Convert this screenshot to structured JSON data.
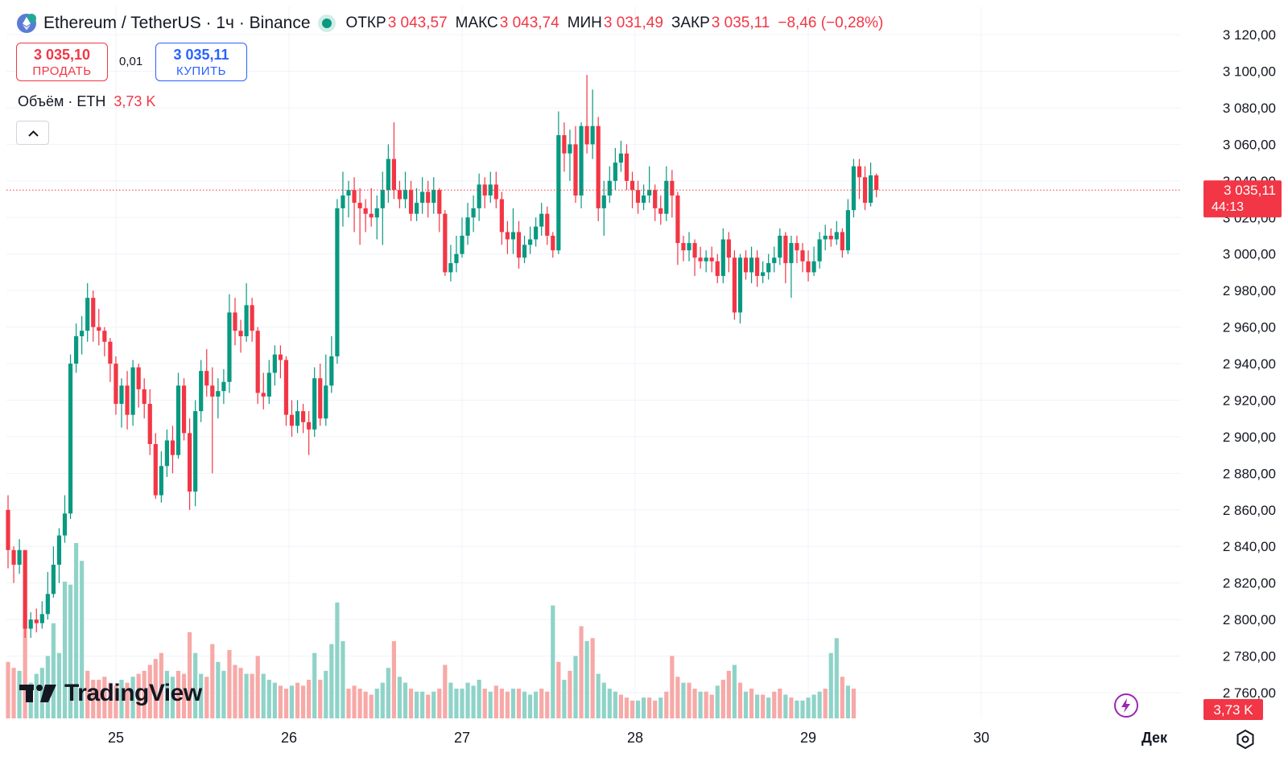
{
  "header": {
    "symbol": "Ethereum / TetherUS · 1ч · Binance",
    "open_label": "ОТКР",
    "open_value": "3 043,57",
    "high_label": "МАКС",
    "high_value": "3 043,74",
    "low_label": "МИН",
    "low_value": "3 031,49",
    "close_label": "ЗАКР",
    "close_value": "3 035,11",
    "change": "−8,46 (−0,28%)"
  },
  "trade": {
    "sell_price": "3 035,10",
    "sell_label": "ПРОДАТЬ",
    "spread": "0,01",
    "buy_price": "3 035,11",
    "buy_label": "КУПИТЬ"
  },
  "volume_legend": {
    "label": "Объём · ETH",
    "value": "3,73 K"
  },
  "logo": {
    "text": "TradingView"
  },
  "colors": {
    "up": "#089981",
    "down": "#f23645",
    "vol_up": "#8fd3c8",
    "vol_down": "#f7a9a7",
    "accent": "#2962ff"
  },
  "icons": {
    "symbol": "ethereum-icon",
    "collapse": "chevron-up-icon",
    "bolt": "lightning-icon",
    "settings": "gear-icon"
  },
  "chart_data": {
    "type": "candlestick",
    "interval": "1h",
    "y_ticks": [
      2760,
      2780,
      2800,
      2820,
      2840,
      2860,
      2880,
      2900,
      2920,
      2940,
      2960,
      2980,
      3000,
      3020,
      3040,
      3060,
      3080,
      3100,
      3120
    ],
    "y_tick_labels": [
      "2 760,00",
      "2 780,00",
      "2 800,00",
      "2 820,00",
      "2 840,00",
      "2 860,00",
      "2 880,00",
      "2 900,00",
      "2 920,00",
      "2 940,00",
      "2 960,00",
      "2 980,00",
      "3 000,00",
      "3 020,00",
      "3 040,00",
      "3 060,00",
      "3 080,00",
      "3 100,00",
      "3 120,00"
    ],
    "x_labels": [
      "25",
      "26",
      "27",
      "28",
      "29",
      "30",
      "Дек"
    ],
    "last_price_label": "3 035,11",
    "countdown_label": "44:13",
    "last_volume_label": "3,73 K",
    "candles": [
      [
        2860,
        2838,
        2868,
        2828
      ],
      [
        2838,
        2830,
        2840,
        2820
      ],
      [
        2830,
        2838,
        2844,
        2825
      ],
      [
        2838,
        2795,
        2838,
        2790
      ],
      [
        2795,
        2800,
        2804,
        2790
      ],
      [
        2800,
        2798,
        2806,
        2793
      ],
      [
        2798,
        2803,
        2810,
        2795
      ],
      [
        2803,
        2814,
        2826,
        2800
      ],
      [
        2814,
        2830,
        2840,
        2812
      ],
      [
        2830,
        2846,
        2850,
        2820
      ],
      [
        2846,
        2858,
        2868,
        2842
      ],
      [
        2858,
        2940,
        2945,
        2855
      ],
      [
        2940,
        2955,
        2962,
        2935
      ],
      [
        2955,
        2958,
        2966,
        2945
      ],
      [
        2958,
        2976,
        2984,
        2952
      ],
      [
        2976,
        2960,
        2980,
        2952
      ],
      [
        2960,
        2958,
        2970,
        2950
      ],
      [
        2958,
        2952,
        2960,
        2944
      ],
      [
        2952,
        2940,
        2954,
        2930
      ],
      [
        2940,
        2918,
        2944,
        2912
      ],
      [
        2918,
        2928,
        2932,
        2905
      ],
      [
        2928,
        2912,
        2936,
        2904
      ],
      [
        2912,
        2938,
        2942,
        2906
      ],
      [
        2938,
        2926,
        2940,
        2916
      ],
      [
        2926,
        2918,
        2932,
        2910
      ],
      [
        2918,
        2896,
        2926,
        2890
      ],
      [
        2896,
        2868,
        2902,
        2866
      ],
      [
        2868,
        2884,
        2892,
        2864
      ],
      [
        2884,
        2898,
        2904,
        2878
      ],
      [
        2898,
        2890,
        2906,
        2880
      ],
      [
        2890,
        2928,
        2935,
        2888
      ],
      [
        2928,
        2902,
        2932,
        2898
      ],
      [
        2902,
        2870,
        2910,
        2860
      ],
      [
        2870,
        2914,
        2920,
        2862
      ],
      [
        2914,
        2936,
        2942,
        2908
      ],
      [
        2936,
        2928,
        2948,
        2922
      ],
      [
        2928,
        2922,
        2938,
        2880
      ],
      [
        2922,
        2925,
        2932,
        2910
      ],
      [
        2925,
        2930,
        2937,
        2918
      ],
      [
        2930,
        2968,
        2978,
        2924
      ],
      [
        2968,
        2958,
        2976,
        2950
      ],
      [
        2958,
        2955,
        2964,
        2946
      ],
      [
        2955,
        2972,
        2984,
        2952
      ],
      [
        2972,
        2958,
        2976,
        2952
      ],
      [
        2958,
        2924,
        2960,
        2918
      ],
      [
        2924,
        2922,
        2935,
        2915
      ],
      [
        2922,
        2935,
        2942,
        2918
      ],
      [
        2935,
        2945,
        2950,
        2928
      ],
      [
        2945,
        2942,
        2950,
        2932
      ],
      [
        2942,
        2912,
        2944,
        2906
      ],
      [
        2912,
        2906,
        2920,
        2900
      ],
      [
        2906,
        2914,
        2920,
        2902
      ],
      [
        2914,
        2908,
        2918,
        2902
      ],
      [
        2908,
        2904,
        2914,
        2890
      ],
      [
        2904,
        2932,
        2938,
        2900
      ],
      [
        2932,
        2910,
        2940,
        2906
      ],
      [
        2910,
        2928,
        2945,
        2906
      ],
      [
        2928,
        2944,
        2955,
        2924
      ],
      [
        2944,
        3025,
        3030,
        2940
      ],
      [
        3025,
        3032,
        3045,
        3015
      ],
      [
        3032,
        3035,
        3040,
        3020
      ],
      [
        3035,
        3028,
        3042,
        3012
      ],
      [
        3028,
        3025,
        3036,
        3005
      ],
      [
        3025,
        3022,
        3030,
        3012
      ],
      [
        3022,
        3020,
        3036,
        3015
      ],
      [
        3020,
        3025,
        3032,
        3008
      ],
      [
        3025,
        3035,
        3045,
        3005
      ],
      [
        3035,
        3052,
        3060,
        3028
      ],
      [
        3052,
        3035,
        3072,
        3030
      ],
      [
        3035,
        3030,
        3040,
        3025
      ],
      [
        3030,
        3035,
        3045,
        3025
      ],
      [
        3035,
        3022,
        3040,
        3018
      ],
      [
        3022,
        3028,
        3036,
        3018
      ],
      [
        3028,
        3034,
        3042,
        3022
      ],
      [
        3034,
        3028,
        3040,
        3020
      ],
      [
        3028,
        3035,
        3042,
        3022
      ],
      [
        3035,
        3022,
        3036,
        3012
      ],
      [
        3022,
        2990,
        3024,
        2988
      ],
      [
        2990,
        2995,
        3005,
        2985
      ],
      [
        2995,
        3000,
        3010,
        2990
      ],
      [
        3000,
        3010,
        3020,
        2998
      ],
      [
        3010,
        3020,
        3028,
        3005
      ],
      [
        3020,
        3025,
        3032,
        3012
      ],
      [
        3025,
        3038,
        3044,
        3018
      ],
      [
        3038,
        3032,
        3042,
        3025
      ],
      [
        3032,
        3038,
        3045,
        3028
      ],
      [
        3038,
        3030,
        3045,
        3025
      ],
      [
        3030,
        3012,
        3034,
        3005
      ],
      [
        3012,
        3008,
        3018,
        3000
      ],
      [
        3008,
        3012,
        3025,
        3000
      ],
      [
        3012,
        2998,
        3018,
        2992
      ],
      [
        2998,
        3005,
        3010,
        2995
      ],
      [
        3005,
        3008,
        3015,
        3000
      ],
      [
        3008,
        3015,
        3020,
        3004
      ],
      [
        3015,
        3022,
        3028,
        3010
      ],
      [
        3022,
        3010,
        3026,
        3005
      ],
      [
        3010,
        3002,
        3012,
        2998
      ],
      [
        3002,
        3065,
        3078,
        3000
      ],
      [
        3065,
        3055,
        3072,
        3045
      ],
      [
        3055,
        3060,
        3068,
        3040
      ],
      [
        3060,
        3032,
        3070,
        3028
      ],
      [
        3032,
        3070,
        3072,
        3025
      ],
      [
        3070,
        3060,
        3098,
        3055
      ],
      [
        3060,
        3070,
        3090,
        3052
      ],
      [
        3070,
        3025,
        3075,
        3018
      ],
      [
        3025,
        3032,
        3040,
        3010
      ],
      [
        3032,
        3040,
        3048,
        3028
      ],
      [
        3040,
        3050,
        3058,
        3035
      ],
      [
        3050,
        3055,
        3062,
        3045
      ],
      [
        3055,
        3040,
        3060,
        3035
      ],
      [
        3040,
        3035,
        3045,
        3025
      ],
      [
        3035,
        3028,
        3040,
        3022
      ],
      [
        3028,
        3032,
        3038,
        3024
      ],
      [
        3032,
        3035,
        3048,
        3028
      ],
      [
        3035,
        3025,
        3038,
        3018
      ],
      [
        3025,
        3022,
        3032,
        3016
      ],
      [
        3022,
        3040,
        3048,
        3018
      ],
      [
        3040,
        3032,
        3046,
        3020
      ],
      [
        3032,
        3006,
        3034,
        2994
      ],
      [
        3006,
        3002,
        3010,
        2996
      ],
      [
        3002,
        3006,
        3012,
        2996
      ],
      [
        3006,
        2998,
        3008,
        2988
      ],
      [
        2998,
        2996,
        3004,
        2992
      ],
      [
        2996,
        2998,
        3002,
        2990
      ],
      [
        2998,
        2996,
        3004,
        2990
      ],
      [
        2996,
        2988,
        3000,
        2984
      ],
      [
        2988,
        3008,
        3014,
        2984
      ],
      [
        3008,
        2998,
        3012,
        2990
      ],
      [
        2998,
        2968,
        3002,
        2964
      ],
      [
        2968,
        2998,
        3000,
        2962
      ],
      [
        2998,
        2990,
        3002,
        2986
      ],
      [
        2990,
        2998,
        3004,
        2984
      ],
      [
        2998,
        2988,
        3002,
        2982
      ],
      [
        2988,
        2990,
        2996,
        2984
      ],
      [
        2990,
        2995,
        3000,
        2986
      ],
      [
        2995,
        2998,
        3004,
        2990
      ],
      [
        2998,
        3010,
        3014,
        2994
      ],
      [
        3010,
        2995,
        3012,
        2984
      ],
      [
        2995,
        3006,
        3010,
        2976
      ],
      [
        3006,
        3002,
        3010,
        2995
      ],
      [
        3002,
        2996,
        3006,
        2990
      ],
      [
        2996,
        2990,
        3002,
        2985
      ],
      [
        2990,
        2996,
        3004,
        2988
      ],
      [
        2996,
        3008,
        3012,
        2992
      ],
      [
        3008,
        3010,
        3016,
        3002
      ],
      [
        3010,
        3008,
        3014,
        3004
      ],
      [
        3008,
        3012,
        3018,
        3005
      ],
      [
        3012,
        3002,
        3014,
        2998
      ],
      [
        3002,
        3024,
        3030,
        3000
      ],
      [
        3024,
        3048,
        3052,
        3020
      ],
      [
        3048,
        3042,
        3052,
        3030
      ],
      [
        3042,
        3028,
        3048,
        3024
      ],
      [
        3028,
        3043,
        3050,
        3026
      ],
      [
        3043,
        3035,
        3044,
        3031
      ]
    ],
    "volumes": [
      [
        1.9,
        1
      ],
      [
        1.7,
        1
      ],
      [
        1.6,
        0
      ],
      [
        3.5,
        1
      ],
      [
        1.2,
        0
      ],
      [
        1.5,
        0
      ],
      [
        1.7,
        0
      ],
      [
        2.1,
        0
      ],
      [
        3.2,
        0
      ],
      [
        2.2,
        0
      ],
      [
        4.6,
        0
      ],
      [
        4.5,
        0
      ],
      [
        5.9,
        0
      ],
      [
        5.3,
        0
      ],
      [
        1.6,
        1
      ],
      [
        1.3,
        1
      ],
      [
        1.3,
        1
      ],
      [
        1.4,
        1
      ],
      [
        1.2,
        1
      ],
      [
        1.1,
        1
      ],
      [
        1.3,
        0
      ],
      [
        1.2,
        1
      ],
      [
        1.4,
        0
      ],
      [
        1.5,
        1
      ],
      [
        1.6,
        1
      ],
      [
        1.8,
        1
      ],
      [
        2.0,
        1
      ],
      [
        2.2,
        1
      ],
      [
        1.6,
        0
      ],
      [
        1.4,
        0
      ],
      [
        1.6,
        1
      ],
      [
        1.5,
        1
      ],
      [
        2.9,
        1
      ],
      [
        2.2,
        0
      ],
      [
        1.5,
        0
      ],
      [
        1.4,
        1
      ],
      [
        2.5,
        1
      ],
      [
        1.9,
        0
      ],
      [
        1.6,
        0
      ],
      [
        2.3,
        1
      ],
      [
        1.8,
        1
      ],
      [
        1.7,
        1
      ],
      [
        1.5,
        0
      ],
      [
        1.5,
        1
      ],
      [
        2.1,
        1
      ],
      [
        1.5,
        0
      ],
      [
        1.3,
        0
      ],
      [
        1.2,
        0
      ],
      [
        1.1,
        1
      ],
      [
        1.0,
        1
      ],
      [
        1.1,
        0
      ],
      [
        1.2,
        1
      ],
      [
        1.1,
        1
      ],
      [
        1.3,
        1
      ],
      [
        2.2,
        0
      ],
      [
        1.3,
        1
      ],
      [
        1.6,
        0
      ],
      [
        2.5,
        0
      ],
      [
        3.9,
        0
      ],
      [
        2.6,
        0
      ],
      [
        1.0,
        1
      ],
      [
        1.1,
        1
      ],
      [
        1.0,
        1
      ],
      [
        0.9,
        1
      ],
      [
        0.8,
        1
      ],
      [
        1.0,
        0
      ],
      [
        1.2,
        0
      ],
      [
        1.7,
        0
      ],
      [
        2.6,
        1
      ],
      [
        1.4,
        0
      ],
      [
        1.2,
        0
      ],
      [
        1.0,
        1
      ],
      [
        0.9,
        0
      ],
      [
        0.9,
        0
      ],
      [
        0.8,
        1
      ],
      [
        0.9,
        0
      ],
      [
        1.0,
        1
      ],
      [
        1.8,
        1
      ],
      [
        1.2,
        0
      ],
      [
        1.0,
        0
      ],
      [
        1.0,
        0
      ],
      [
        1.2,
        0
      ],
      [
        1.1,
        0
      ],
      [
        1.3,
        0
      ],
      [
        1.0,
        1
      ],
      [
        0.9,
        0
      ],
      [
        1.1,
        1
      ],
      [
        1.0,
        1
      ],
      [
        0.9,
        1
      ],
      [
        1.0,
        0
      ],
      [
        1.0,
        1
      ],
      [
        0.9,
        0
      ],
      [
        0.8,
        0
      ],
      [
        0.9,
        0
      ],
      [
        1.0,
        1
      ],
      [
        0.9,
        1
      ],
      [
        3.8,
        0
      ],
      [
        1.9,
        1
      ],
      [
        1.3,
        0
      ],
      [
        1.6,
        1
      ],
      [
        2.1,
        0
      ],
      [
        3.1,
        1
      ],
      [
        2.6,
        0
      ],
      [
        2.7,
        1
      ],
      [
        1.5,
        0
      ],
      [
        1.2,
        0
      ],
      [
        1.0,
        0
      ],
      [
        0.9,
        0
      ],
      [
        0.8,
        1
      ],
      [
        0.7,
        1
      ],
      [
        0.6,
        1
      ],
      [
        0.6,
        0
      ],
      [
        0.7,
        0
      ],
      [
        0.7,
        1
      ],
      [
        0.6,
        1
      ],
      [
        0.7,
        0
      ],
      [
        0.9,
        1
      ],
      [
        2.1,
        1
      ],
      [
        1.4,
        1
      ],
      [
        1.2,
        0
      ],
      [
        1.2,
        1
      ],
      [
        1.0,
        1
      ],
      [
        0.9,
        0
      ],
      [
        0.9,
        1
      ],
      [
        0.8,
        1
      ],
      [
        1.1,
        0
      ],
      [
        1.3,
        1
      ],
      [
        1.6,
        1
      ],
      [
        1.8,
        0
      ],
      [
        1.2,
        1
      ],
      [
        0.9,
        0
      ],
      [
        1.0,
        1
      ],
      [
        0.8,
        0
      ],
      [
        0.8,
        1
      ],
      [
        0.7,
        0
      ],
      [
        0.9,
        1
      ],
      [
        1.0,
        1
      ],
      [
        0.8,
        0
      ],
      [
        0.7,
        1
      ],
      [
        0.6,
        0
      ],
      [
        0.6,
        0
      ],
      [
        0.7,
        0
      ],
      [
        0.8,
        0
      ],
      [
        0.9,
        0
      ],
      [
        1.0,
        1
      ],
      [
        2.2,
        0
      ],
      [
        2.7,
        0
      ],
      [
        1.4,
        1
      ],
      [
        1.1,
        0
      ],
      [
        1.0,
        1
      ]
    ]
  }
}
